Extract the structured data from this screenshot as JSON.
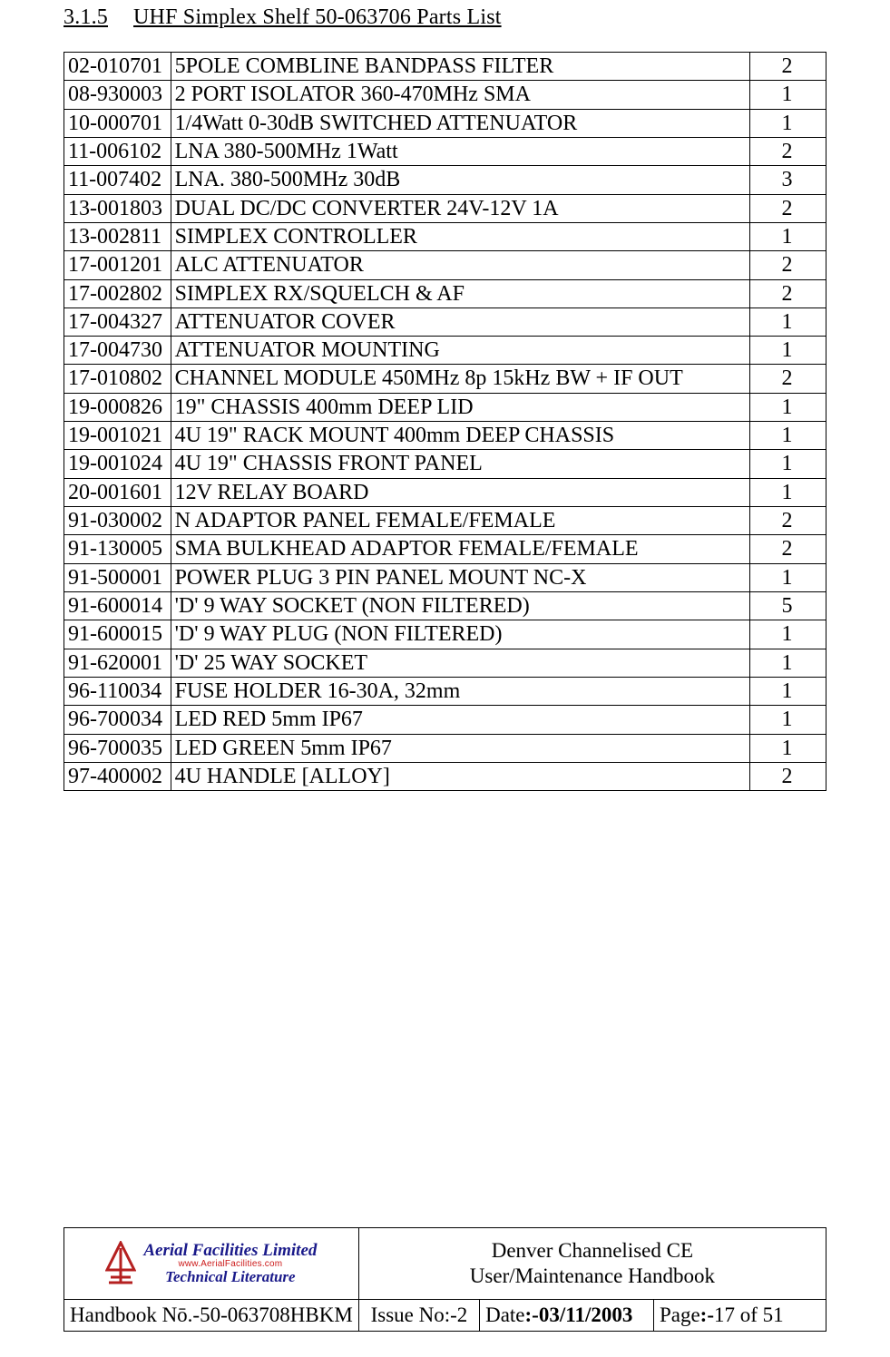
{
  "section": {
    "number": "3.1.5",
    "title": "UHF Simplex Shelf 50-063706 Parts List"
  },
  "parts_table": {
    "rows": [
      {
        "part": "02-010701",
        "desc": "5POLE COMBLINE BANDPASS FILTER",
        "qty": "2"
      },
      {
        "part": "08-930003",
        "desc": "2 PORT ISOLATOR 360-470MHz SMA",
        "qty": "1"
      },
      {
        "part": "10-000701",
        "desc": "1/4Watt 0-30dB SWITCHED ATTENUATOR",
        "qty": "1"
      },
      {
        "part": "11-006102",
        "desc": "LNA 380-500MHz 1Watt",
        "qty": "2"
      },
      {
        "part": "11-007402",
        "desc": "LNA. 380-500MHz 30dB",
        "qty": "3"
      },
      {
        "part": "13-001803",
        "desc": "DUAL DC/DC CONVERTER 24V-12V 1A",
        "qty": "2"
      },
      {
        "part": "13-002811",
        "desc": "SIMPLEX CONTROLLER",
        "qty": "1"
      },
      {
        "part": "17-001201",
        "desc": "ALC ATTENUATOR",
        "qty": "2"
      },
      {
        "part": "17-002802",
        "desc": "SIMPLEX RX/SQUELCH & AF",
        "qty": "2"
      },
      {
        "part": "17-004327",
        "desc": "ATTENUATOR COVER",
        "qty": "1"
      },
      {
        "part": "17-004730",
        "desc": "ATTENUATOR MOUNTING",
        "qty": "1"
      },
      {
        "part": "17-010802",
        "desc": "CHANNEL MODULE 450MHz 8p 15kHz BW + IF OUT",
        "qty": "2"
      },
      {
        "part": "19-000826",
        "desc": "19\" CHASSIS 400mm DEEP LID",
        "qty": "1"
      },
      {
        "part": "19-001021",
        "desc": "4U 19\" RACK MOUNT 400mm DEEP CHASSIS",
        "qty": "1"
      },
      {
        "part": "19-001024",
        "desc": "4U 19\" CHASSIS FRONT PANEL",
        "qty": "1"
      },
      {
        "part": "20-001601",
        "desc": "12V RELAY BOARD",
        "qty": "1"
      },
      {
        "part": "91-030002",
        "desc": "N ADAPTOR PANEL FEMALE/FEMALE",
        "qty": "2"
      },
      {
        "part": "91-130005",
        "desc": "SMA BULKHEAD ADAPTOR FEMALE/FEMALE",
        "qty": "2"
      },
      {
        "part": "91-500001",
        "desc": "POWER PLUG 3 PIN PANEL MOUNT NC-X",
        "qty": "1"
      },
      {
        "part": "91-600014",
        "desc": "'D' 9 WAY SOCKET  (NON FILTERED)",
        "qty": "5"
      },
      {
        "part": "91-600015",
        "desc": "'D' 9 WAY PLUG (NON FILTERED)",
        "qty": "1"
      },
      {
        "part": "91-620001",
        "desc": "'D' 25 WAY SOCKET",
        "qty": "1"
      },
      {
        "part": "96-110034",
        "desc": "FUSE HOLDER 16-30A, 32mm",
        "qty": "1"
      },
      {
        "part": "96-700034",
        "desc": "LED RED 5mm IP67",
        "qty": "1"
      },
      {
        "part": "96-700035",
        "desc": "LED GREEN 5mm IP67",
        "qty": "1"
      },
      {
        "part": "97-400002",
        "desc": "4U HANDLE [ALLOY]",
        "qty": "2"
      }
    ]
  },
  "footer": {
    "logo": {
      "line1": "Aerial  Facilities  Limited",
      "line2": "www.AerialFacilities.com",
      "line3": "Technical Literature"
    },
    "doc_title_line1": "Denver Channelised CE",
    "doc_title_line2": "User/Maintenance Handbook",
    "handbook_label": "Handbook Nō.-",
    "handbook_value": "50-063708HBKM",
    "issue_label": "Issue No:-",
    "issue_value": "2",
    "date_label": "Date",
    "date_sep": ":-",
    "date_value": "03/11/2003",
    "page_label": "Page",
    "page_sep": ":-",
    "page_value": "17 of 51"
  }
}
